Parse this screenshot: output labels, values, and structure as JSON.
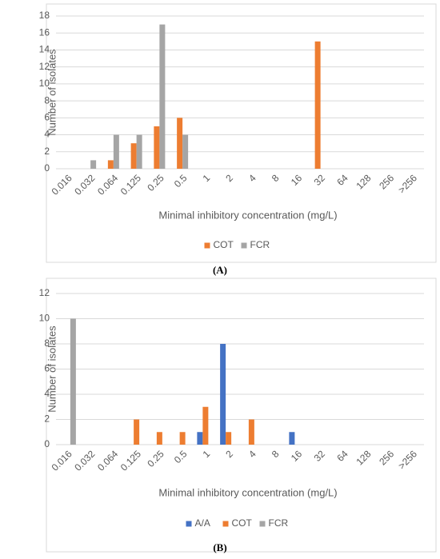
{
  "chart_data": [
    {
      "type": "bar",
      "caption": "(A)",
      "x_label": "Minimal inhibitory concentration (mg/L)",
      "y_label": "Number of isolates",
      "categories": [
        "0.016",
        "0.032",
        "0.064",
        "0.125",
        "0.25",
        "0.5",
        "1",
        "2",
        "4",
        "8",
        "16",
        "32",
        "64",
        "128",
        "256",
        ">256"
      ],
      "series": [
        {
          "name": "COT",
          "color": "#ed7d31",
          "values": [
            0,
            0,
            1,
            3,
            5,
            6,
            0,
            0,
            0,
            0,
            0,
            15,
            0,
            0,
            0,
            0
          ]
        },
        {
          "name": "FCR",
          "color": "#a5a5a5",
          "values": [
            0,
            1,
            4,
            4,
            17,
            4,
            0,
            0,
            0,
            0,
            0,
            0,
            0,
            0,
            0,
            0
          ]
        }
      ],
      "ylim": [
        0,
        18
      ],
      "yticks": [
        0,
        2,
        4,
        6,
        8,
        10,
        12,
        14,
        16,
        18
      ],
      "grid": true,
      "legend": "bottom"
    },
    {
      "type": "bar",
      "caption": "(B)",
      "x_label": "Minimal inhibitory concentration (mg/L)",
      "y_label": "Number of isolates",
      "categories": [
        "0.016",
        "0.032",
        "0.064",
        "0.125",
        "0.25",
        "0.5",
        "1",
        "2",
        "4",
        "8",
        "16",
        "32",
        "64",
        "128",
        "256",
        ">256"
      ],
      "series": [
        {
          "name": "A/A",
          "color": "#4472c4",
          "values": [
            0,
            0,
            0,
            0,
            0,
            0,
            1,
            8,
            0,
            0,
            1,
            0,
            0,
            0,
            0,
            0
          ]
        },
        {
          "name": "COT",
          "color": "#ed7d31",
          "values": [
            0,
            0,
            0,
            2,
            1,
            1,
            3,
            1,
            2,
            0,
            0,
            0,
            0,
            0,
            0,
            0
          ]
        },
        {
          "name": "FCR",
          "color": "#a5a5a5",
          "values": [
            10,
            0,
            0,
            0,
            0,
            0,
            0,
            0,
            0,
            0,
            0,
            0,
            0,
            0,
            0,
            0
          ]
        }
      ],
      "ylim": [
        0,
        12
      ],
      "yticks": [
        0,
        2,
        4,
        6,
        8,
        10,
        12
      ],
      "grid": true,
      "legend": "bottom"
    }
  ]
}
